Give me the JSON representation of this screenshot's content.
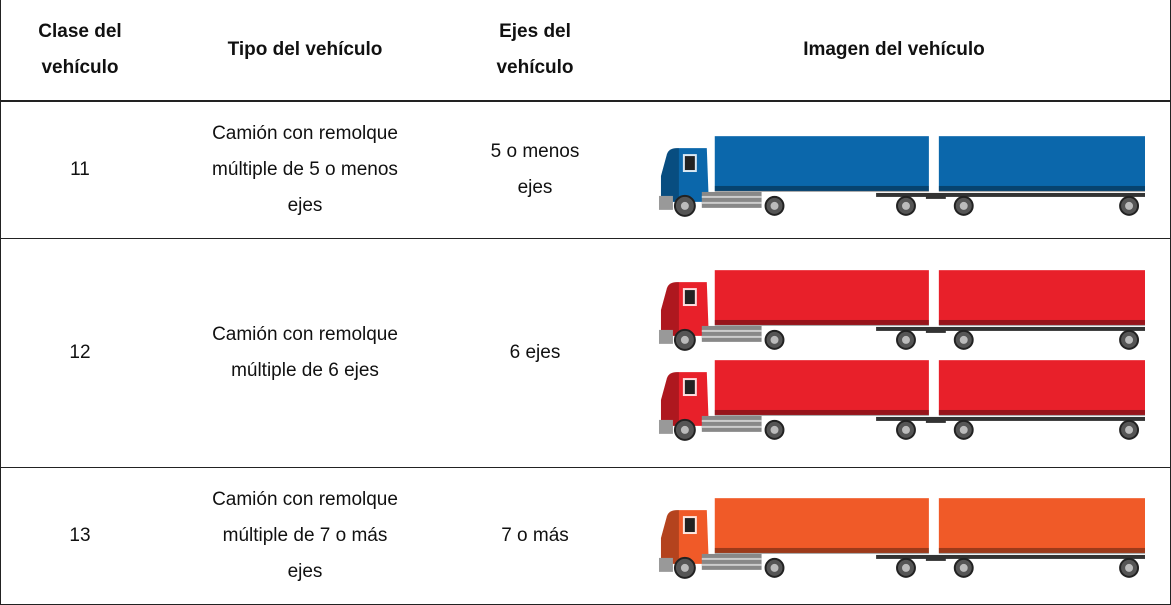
{
  "table": {
    "header": [
      [
        "Clase del",
        "vehículo"
      ],
      [
        "Tipo del vehículo"
      ],
      [
        "Ejes del",
        "vehículo"
      ],
      [
        "Imagen del vehículo"
      ]
    ],
    "rows": [
      [
        [
          "11"
        ],
        [
          "Camión con remolque",
          "múltiple de 5 o menos",
          "ejes"
        ],
        [
          "5 o menos",
          "ejes"
        ]
      ],
      [
        [
          "12"
        ],
        [
          "Camión con remolque",
          "múltiple de 6 ejes"
        ],
        [
          "6 ejes"
        ]
      ],
      [
        [
          "13"
        ],
        [
          "Camión con remolque",
          "múltiple de 7 o más",
          "ejes"
        ],
        [
          "7 o más"
        ]
      ]
    ]
  }
}
